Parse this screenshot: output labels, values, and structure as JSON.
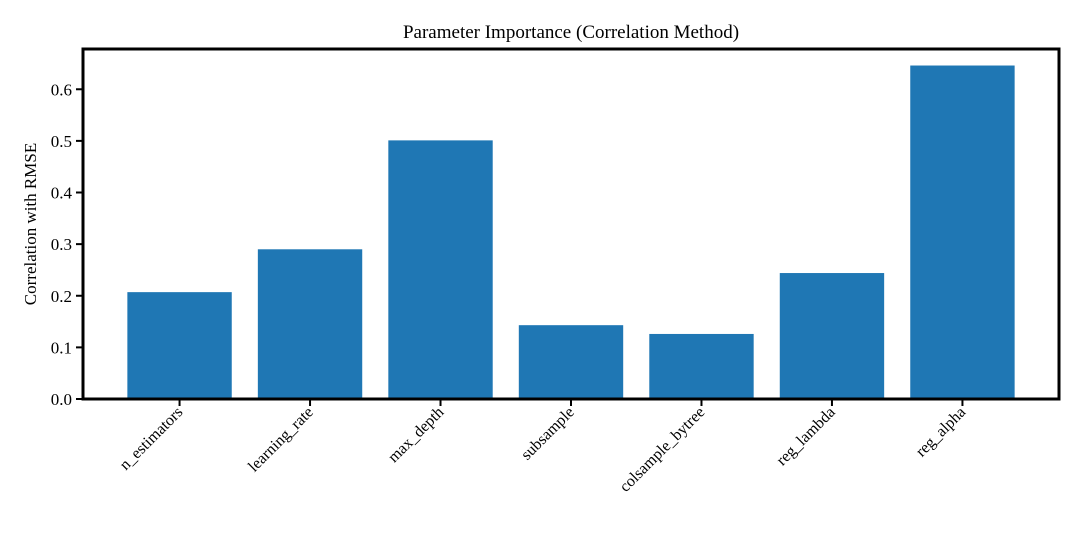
{
  "chart_data": {
    "type": "bar",
    "title": "Parameter Importance (Correlation Method)",
    "xlabel": "",
    "ylabel": "Correlation with RMSE",
    "categories": [
      "n_estimators",
      "learning_rate",
      "max_depth",
      "subsample",
      "colsample_bytree",
      "reg_lambda",
      "reg_alpha"
    ],
    "values": [
      0.207,
      0.29,
      0.501,
      0.143,
      0.126,
      0.244,
      0.646
    ],
    "ylim": [
      0,
      0.678
    ],
    "yticks": [
      "0.0",
      "0.1",
      "0.2",
      "0.3",
      "0.4",
      "0.5",
      "0.6"
    ],
    "grid": false,
    "bar_color": "#1f77b4",
    "xtick_rotation": 45
  }
}
